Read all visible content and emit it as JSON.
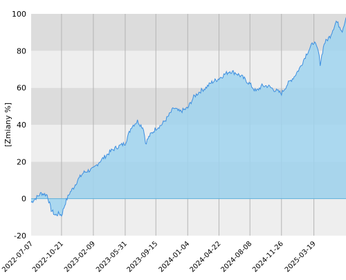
{
  "chart_data": {
    "type": "area",
    "title": "",
    "xlabel": "",
    "ylabel": "[Zmiany %]",
    "ylim": [
      -20,
      100
    ],
    "y_ticks": [
      -20,
      0,
      20,
      40,
      60,
      80,
      100
    ],
    "x_tick_labels": [
      "2022-07-07",
      "2022-10-21",
      "2023-02-09",
      "2023-05-31",
      "2023-09-15",
      "2024-01-04",
      "2024-04-22",
      "2024-08-08",
      "2024-11-26",
      "2025-03-19"
    ],
    "grid": true,
    "colors": {
      "line": "#3d8fe0",
      "fill": "#9fd3ef",
      "band_dark": "#dcdcdc",
      "band_light": "#eeeeee",
      "vgrid": "#b4b4b4",
      "zero_line": "#5fb0da"
    },
    "series": [
      {
        "x": [
          "2022-07-07",
          "2022-07-21",
          "2022-08-11",
          "2022-09-01",
          "2022-09-15",
          "2022-09-29",
          "2022-10-13",
          "2022-10-21",
          "2022-11-04",
          "2022-11-18",
          "2022-12-02",
          "2022-12-16",
          "2023-01-05",
          "2023-01-19",
          "2023-02-09",
          "2023-03-02",
          "2023-03-23",
          "2023-04-13",
          "2023-05-04",
          "2023-05-31",
          "2023-06-22",
          "2023-07-13",
          "2023-08-03",
          "2023-08-10",
          "2023-08-24",
          "2023-09-15",
          "2023-10-05",
          "2023-10-26",
          "2023-11-16",
          "2023-12-07",
          "2024-01-04",
          "2024-01-25",
          "2024-02-15",
          "2024-03-07",
          "2024-03-28",
          "2024-04-22",
          "2024-05-09",
          "2024-05-30",
          "2024-06-20",
          "2024-07-11",
          "2024-08-08",
          "2024-08-29",
          "2024-09-19",
          "2024-10-10",
          "2024-10-31",
          "2024-11-26",
          "2024-12-17",
          "2025-01-09",
          "2025-01-30",
          "2025-02-20",
          "2025-03-19",
          "2025-04-03",
          "2025-04-10",
          "2025-04-24",
          "2025-05-15",
          "2025-06-05",
          "2025-06-26",
          "2025-07-09"
        ],
        "y": [
          -2,
          0,
          3,
          2,
          -6,
          -9,
          -8,
          -9,
          -2,
          3,
          6,
          10,
          14,
          15,
          16,
          20,
          23,
          26,
          28,
          30,
          39,
          42,
          38,
          30,
          34,
          38,
          40,
          44,
          49,
          47,
          49,
          55,
          58,
          60,
          63,
          65,
          67,
          69,
          68,
          66,
          62,
          58,
          61,
          61,
          59,
          57,
          62,
          66,
          71,
          78,
          85,
          80,
          73,
          84,
          88,
          96,
          91,
          98
        ]
      }
    ]
  }
}
